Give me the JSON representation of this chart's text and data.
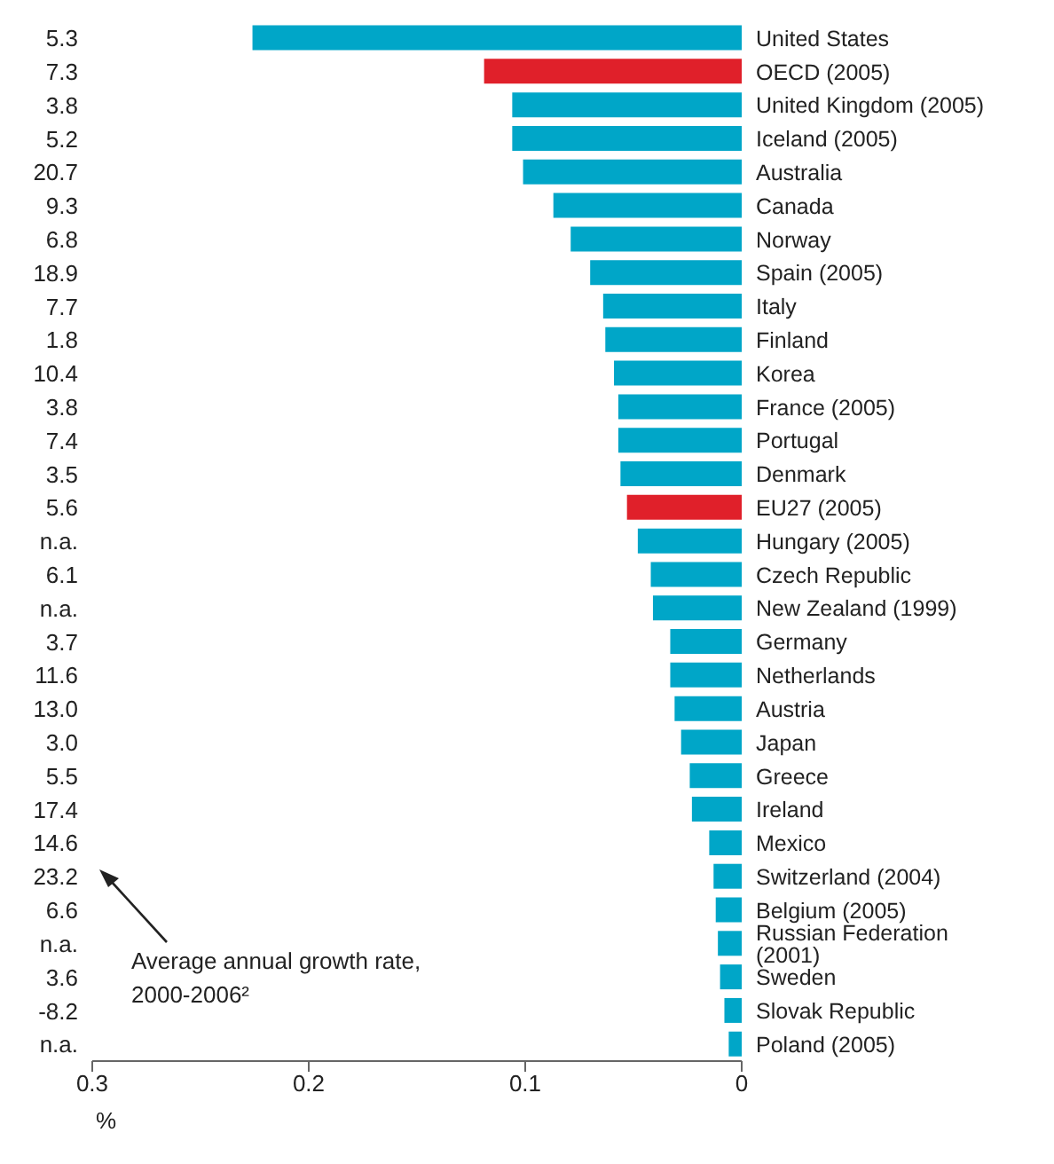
{
  "chart_data": {
    "type": "bar",
    "orientation": "horizontal",
    "xlabel": "%",
    "categories": [
      "United States",
      "OECD (2005)",
      "United Kingdom (2005)",
      "Iceland (2005)",
      "Australia",
      "Canada",
      "Norway",
      "Spain (2005)",
      "Italy",
      "Finland",
      "Korea",
      "France (2005)",
      "Portugal",
      "Denmark",
      "EU27 (2005)",
      "Hungary (2005)",
      "Czech Republic",
      "New Zealand (1999)",
      "Germany",
      "Netherlands",
      "Austria",
      "Japan",
      "Greece",
      "Ireland",
      "Mexico",
      "Switzerland (2004)",
      "Belgium (2005)",
      "Russian Federation (2001)",
      "Sweden",
      "Slovak Republic",
      "Poland (2005)"
    ],
    "values": [
      0.226,
      0.119,
      0.106,
      0.106,
      0.101,
      0.087,
      0.079,
      0.07,
      0.064,
      0.063,
      0.059,
      0.057,
      0.057,
      0.056,
      0.053,
      0.048,
      0.042,
      0.041,
      0.033,
      0.033,
      0.031,
      0.028,
      0.024,
      0.023,
      0.015,
      0.013,
      0.012,
      0.011,
      0.01,
      0.008,
      0.006
    ],
    "colors": [
      "#00a6c8",
      "#e0202a",
      "#00a6c8",
      "#00a6c8",
      "#00a6c8",
      "#00a6c8",
      "#00a6c8",
      "#00a6c8",
      "#00a6c8",
      "#00a6c8",
      "#00a6c8",
      "#00a6c8",
      "#00a6c8",
      "#00a6c8",
      "#e0202a",
      "#00a6c8",
      "#00a6c8",
      "#00a6c8",
      "#00a6c8",
      "#00a6c8",
      "#00a6c8",
      "#00a6c8",
      "#00a6c8",
      "#00a6c8",
      "#00a6c8",
      "#00a6c8",
      "#00a6c8",
      "#00a6c8",
      "#00a6c8",
      "#00a6c8",
      "#00a6c8"
    ],
    "xlim": [
      0.3,
      0
    ],
    "xticks": [
      0.3,
      0.2,
      0.1,
      0
    ],
    "annotations": [
      "5.3",
      "7.3",
      "3.8",
      "5.2",
      "20.7",
      "9.3",
      "6.8",
      "18.9",
      "7.7",
      "1.8",
      "10.4",
      "3.8",
      "7.4",
      "3.5",
      "5.6",
      "n.a.",
      "6.1",
      "n.a.",
      "3.7",
      "11.6",
      "13.0",
      "3.0",
      "5.5",
      "17.4",
      "14.6",
      "23.2",
      "6.6",
      "n.a.",
      "3.6",
      "-8.2",
      "n.a.",
      "Average annual growth rate, 2000-2006²"
    ]
  }
}
